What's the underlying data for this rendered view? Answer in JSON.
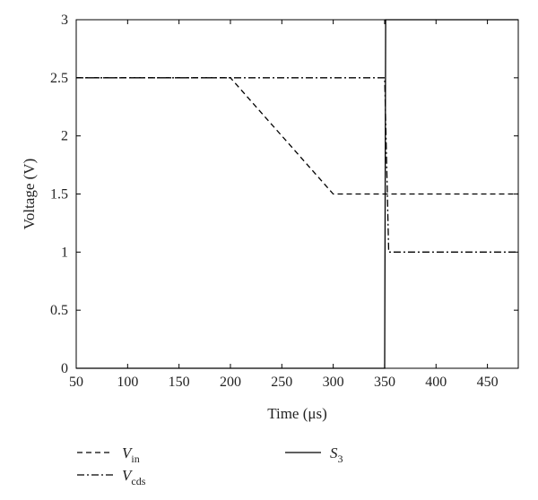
{
  "chart_data": {
    "type": "line",
    "xlabel": "Time (μs)",
    "ylabel": "Voltage (V)",
    "xlim": [
      50,
      480
    ],
    "ylim": [
      0,
      3
    ],
    "xticks": [
      50,
      100,
      150,
      200,
      250,
      300,
      350,
      400,
      450
    ],
    "yticks": [
      0,
      0.5,
      1,
      1.5,
      2,
      2.5,
      3
    ],
    "ytick_labels": [
      "0",
      "0.5",
      "1",
      "1.5",
      "2",
      "2.5",
      "3"
    ],
    "grid": false,
    "legend_position": "bottom",
    "series": [
      {
        "name": "V_in",
        "label_main": "V",
        "label_sub": "in",
        "style": "dashed",
        "color": "#000000",
        "x": [
          50,
          200,
          300,
          480
        ],
        "y": [
          2.5,
          2.5,
          1.5,
          1.5
        ]
      },
      {
        "name": "V_cds",
        "label_main": "V",
        "label_sub": "cds",
        "style": "dashdot",
        "color": "#000000",
        "x": [
          50,
          350,
          354,
          480
        ],
        "y": [
          2.5,
          2.5,
          1.0,
          1.0
        ]
      },
      {
        "name": "S_3",
        "label_main": "S",
        "label_sub": "3",
        "style": "solid",
        "color": "#000000",
        "x": [
          50,
          350,
          351,
          480
        ],
        "y": [
          0,
          0,
          3,
          3
        ]
      }
    ]
  }
}
